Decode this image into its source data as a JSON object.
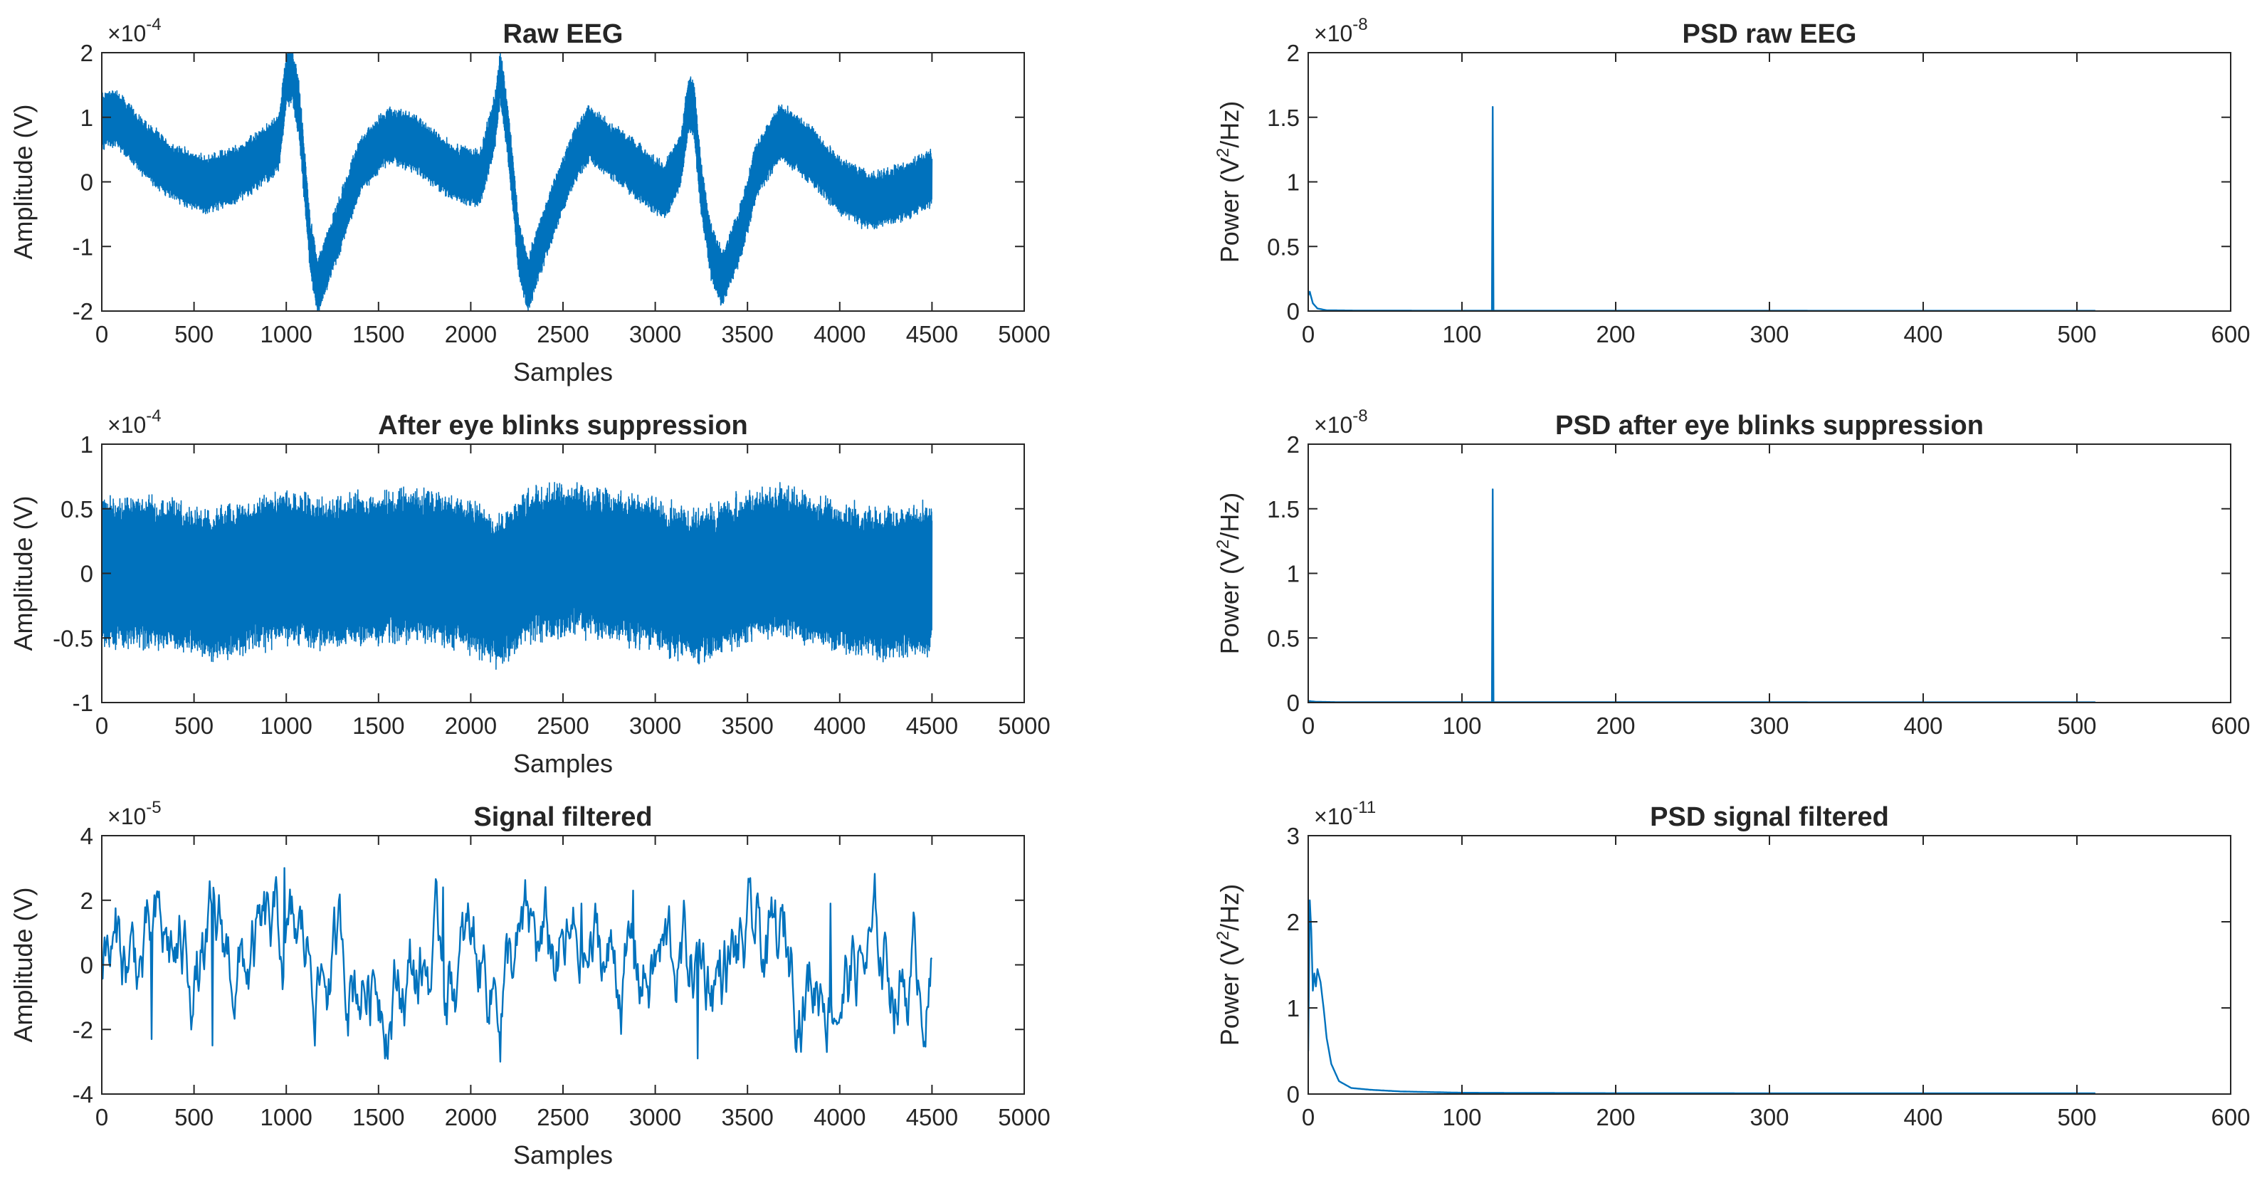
{
  "figure": {
    "background": "#ffffff",
    "line_color": "#0072BD",
    "axis_color": "#262626"
  },
  "chart_data": [
    {
      "id": "raw-eeg",
      "type": "line",
      "title": "Raw EEG",
      "xlabel": "Samples",
      "ylabel": "Amplitude (V)",
      "xlim": [
        0,
        5000
      ],
      "ylim": [
        -2,
        2
      ],
      "xticks": [
        0,
        500,
        1000,
        1500,
        2000,
        2500,
        3000,
        3500,
        4000,
        4500,
        5000
      ],
      "yticks": [
        -2,
        -1,
        0,
        1,
        2
      ],
      "exponent_label": "×10",
      "exponent_power": "-4",
      "color": "#0072BD",
      "signal": {
        "kind": "time",
        "n": 4500,
        "noise_halfwidth": 0.42,
        "noise_jitter": 0.12,
        "baseline": [
          [
            0,
            0.95
          ],
          [
            80,
            1.0
          ],
          [
            200,
            0.6
          ],
          [
            380,
            0.15
          ],
          [
            560,
            -0.05
          ],
          [
            720,
            0.1
          ],
          [
            880,
            0.4
          ],
          [
            960,
            0.6
          ],
          [
            1000,
            1.55
          ],
          [
            1030,
            1.7
          ],
          [
            1070,
            1.1
          ],
          [
            1130,
            -1.0
          ],
          [
            1170,
            -1.62
          ],
          [
            1260,
            -0.9
          ],
          [
            1400,
            0.25
          ],
          [
            1550,
            0.72
          ],
          [
            1700,
            0.6
          ],
          [
            1900,
            0.15
          ],
          [
            2050,
            0.05
          ],
          [
            2130,
            0.9
          ],
          [
            2160,
            1.65
          ],
          [
            2200,
            0.8
          ],
          [
            2260,
            -1.0
          ],
          [
            2310,
            -1.6
          ],
          [
            2400,
            -0.8
          ],
          [
            2560,
            0.4
          ],
          [
            2640,
            0.75
          ],
          [
            2800,
            0.4
          ],
          [
            2950,
            0.05
          ],
          [
            3050,
            -0.15
          ],
          [
            3140,
            0.35
          ],
          [
            3180,
            1.2
          ],
          [
            3210,
            1.1
          ],
          [
            3250,
            -0.1
          ],
          [
            3300,
            -1.05
          ],
          [
            3360,
            -1.5
          ],
          [
            3450,
            -0.9
          ],
          [
            3550,
            0.2
          ],
          [
            3680,
            0.78
          ],
          [
            3850,
            0.4
          ],
          [
            4000,
            -0.05
          ],
          [
            4150,
            -0.3
          ],
          [
            4300,
            -0.2
          ],
          [
            4500,
            0.05
          ]
        ]
      }
    },
    {
      "id": "psd-raw",
      "type": "line",
      "title": "PSD raw EEG",
      "xlabel": "",
      "ylabel": "Power (V",
      "ylabel_sup": "2",
      "ylabel_tail": "/Hz)",
      "xlim": [
        0,
        600
      ],
      "ylim": [
        0,
        2
      ],
      "xticks": [
        0,
        100,
        200,
        300,
        400,
        500,
        600
      ],
      "yticks": [
        0,
        0.5,
        1,
        1.5,
        2
      ],
      "exponent_label": "×10",
      "exponent_power": "-8",
      "color": "#0072BD",
      "signal": {
        "kind": "psd",
        "end": 512,
        "peaks": [
          [
            120,
            1.58
          ]
        ],
        "points": [
          [
            0,
            0.12
          ],
          [
            1,
            0.15
          ],
          [
            3,
            0.06
          ],
          [
            6,
            0.02
          ],
          [
            12,
            0.006
          ],
          [
            30,
            0.004
          ],
          [
            119,
            0.003
          ],
          [
            121,
            0.003
          ],
          [
            512,
            0.002
          ]
        ]
      }
    },
    {
      "id": "after-blink",
      "type": "line",
      "title": "After eye blinks suppression",
      "xlabel": "Samples",
      "ylabel": "Amplitude (V)",
      "xlim": [
        0,
        5000
      ],
      "ylim": [
        -1,
        1
      ],
      "xticks": [
        0,
        500,
        1000,
        1500,
        2000,
        2500,
        3000,
        3500,
        4000,
        4500,
        5000
      ],
      "yticks": [
        -1,
        -0.5,
        0,
        0.5,
        1
      ],
      "exponent_label": "×10",
      "exponent_power": "-4",
      "color": "#0072BD",
      "signal": {
        "kind": "time",
        "n": 4500,
        "noise_halfwidth": 0.55,
        "noise_jitter": 0.15,
        "baseline": [
          [
            0,
            0.0
          ],
          [
            200,
            0.02
          ],
          [
            400,
            -0.02
          ],
          [
            600,
            -0.1
          ],
          [
            800,
            -0.02
          ],
          [
            1000,
            0.05
          ],
          [
            1200,
            0.0
          ],
          [
            1500,
            0.05
          ],
          [
            1800,
            0.05
          ],
          [
            2000,
            -0.02
          ],
          [
            2150,
            -0.15
          ],
          [
            2300,
            0.05
          ],
          [
            2550,
            0.12
          ],
          [
            2800,
            0.05
          ],
          [
            3000,
            0.0
          ],
          [
            3200,
            -0.12
          ],
          [
            3500,
            0.05
          ],
          [
            3700,
            0.1
          ],
          [
            3900,
            0.0
          ],
          [
            4200,
            -0.08
          ],
          [
            4500,
            -0.05
          ]
        ]
      }
    },
    {
      "id": "psd-after-blink",
      "type": "line",
      "title": "PSD after eye blinks suppression",
      "xlabel": "",
      "ylabel": "Power (V",
      "ylabel_sup": "2",
      "ylabel_tail": "/Hz)",
      "xlim": [
        0,
        600
      ],
      "ylim": [
        0,
        2
      ],
      "xticks": [
        0,
        100,
        200,
        300,
        400,
        500,
        600
      ],
      "yticks": [
        0,
        0.5,
        1,
        1.5,
        2
      ],
      "exponent_label": "×10",
      "exponent_power": "-8",
      "color": "#0072BD",
      "signal": {
        "kind": "psd",
        "end": 512,
        "peaks": [
          [
            120,
            1.65
          ]
        ],
        "points": [
          [
            0,
            0.012
          ],
          [
            5,
            0.006
          ],
          [
            20,
            0.003
          ],
          [
            119,
            0.003
          ],
          [
            121,
            0.003
          ],
          [
            512,
            0.002
          ]
        ]
      }
    },
    {
      "id": "filtered",
      "type": "line",
      "title": "Signal filtered",
      "xlabel": "Samples",
      "ylabel": "Amplitude (V)",
      "xlim": [
        0,
        5000
      ],
      "ylim": [
        -4,
        4
      ],
      "xticks": [
        0,
        500,
        1000,
        1500,
        2000,
        2500,
        3000,
        3500,
        4000,
        4500,
        5000
      ],
      "yticks": [
        -4,
        -2,
        0,
        2,
        4
      ],
      "exponent_label": "×10",
      "exponent_power": "-5",
      "color": "#0072BD",
      "signal": {
        "kind": "wander",
        "n": 4500,
        "amplitude": 0.8,
        "extremes": [
          [
            990,
            3.0
          ],
          [
            1850,
            2.4
          ],
          [
            2160,
            -3.0
          ],
          [
            2600,
            1.9
          ],
          [
            2880,
            2.3
          ],
          [
            3230,
            -2.9
          ],
          [
            3950,
            1.9
          ],
          [
            4550,
            1.0
          ],
          [
            600,
            -2.5
          ],
          [
            270,
            -2.3
          ]
        ]
      }
    },
    {
      "id": "psd-filtered",
      "type": "line",
      "title": "PSD signal filtered",
      "xlabel": "",
      "ylabel": "Power (V",
      "ylabel_sup": "2",
      "ylabel_tail": "/Hz)",
      "xlim": [
        0,
        600
      ],
      "ylim": [
        0,
        3
      ],
      "xticks": [
        0,
        100,
        200,
        300,
        400,
        500,
        600
      ],
      "yticks": [
        0,
        1,
        2,
        3
      ],
      "exponent_label": "×10",
      "exponent_power": "-11",
      "color": "#0072BD",
      "signal": {
        "kind": "psd",
        "end": 512,
        "peaks": [],
        "points": [
          [
            0,
            0.5
          ],
          [
            1,
            2.25
          ],
          [
            2,
            1.9
          ],
          [
            3,
            1.2
          ],
          [
            4,
            1.4
          ],
          [
            5,
            1.25
          ],
          [
            6,
            1.45
          ],
          [
            8,
            1.3
          ],
          [
            10,
            1.0
          ],
          [
            12,
            0.65
          ],
          [
            15,
            0.35
          ],
          [
            20,
            0.15
          ],
          [
            28,
            0.07
          ],
          [
            40,
            0.05
          ],
          [
            60,
            0.03
          ],
          [
            100,
            0.015
          ],
          [
            200,
            0.01
          ],
          [
            512,
            0.008
          ]
        ]
      }
    }
  ]
}
